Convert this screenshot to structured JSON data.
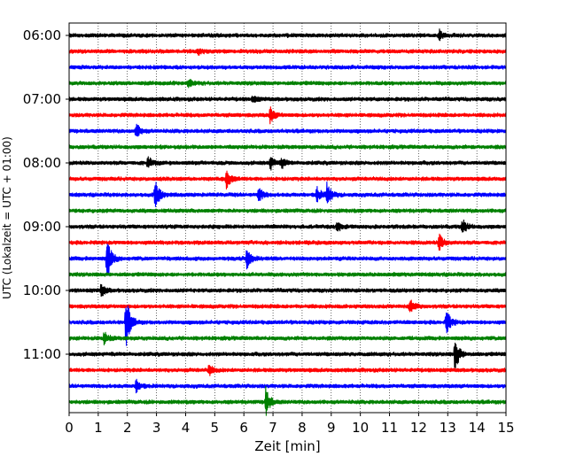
{
  "chart_data": {
    "type": "line",
    "title": "",
    "xlabel": "Zeit  [min]",
    "ylabel": "UTC (Lokalzeit = UTC + 01:00)",
    "xlim": [
      0,
      15
    ],
    "x_ticks": [
      0,
      1,
      2,
      3,
      4,
      5,
      6,
      7,
      8,
      9,
      10,
      11,
      12,
      13,
      14,
      15
    ],
    "y_tick_labels": [
      "06:00",
      "07:00",
      "08:00",
      "09:00",
      "10:00",
      "11:00"
    ],
    "y_tick_trace_index": [
      0,
      4,
      8,
      12,
      16,
      20
    ],
    "trace_interval_min": 15,
    "trace_colors": [
      "#000000",
      "#ff0000",
      "#0000ff",
      "#008000"
    ],
    "grid": "vertical dotted at each minute",
    "traces": [
      {
        "start": "06:00",
        "color": "#000000",
        "events": [
          {
            "t": 12.7,
            "amp": 0.35
          }
        ]
      },
      {
        "start": "06:15",
        "color": "#ff0000",
        "events": [
          {
            "t": 4.4,
            "amp": 0.2
          }
        ]
      },
      {
        "start": "06:30",
        "color": "#0000ff",
        "events": []
      },
      {
        "start": "06:45",
        "color": "#008000",
        "events": [
          {
            "t": 4.1,
            "amp": 0.3
          }
        ]
      },
      {
        "start": "07:00",
        "color": "#000000",
        "events": [
          {
            "t": 6.3,
            "amp": 0.2
          }
        ]
      },
      {
        "start": "07:15",
        "color": "#ff0000",
        "events": [
          {
            "t": 6.9,
            "amp": 0.5
          }
        ]
      },
      {
        "start": "07:30",
        "color": "#0000ff",
        "events": [
          {
            "t": 2.3,
            "amp": 0.5
          }
        ]
      },
      {
        "start": "07:45",
        "color": "#008000",
        "events": []
      },
      {
        "start": "08:00",
        "color": "#000000",
        "events": [
          {
            "t": 2.7,
            "amp": 0.4
          },
          {
            "t": 6.9,
            "amp": 0.45
          },
          {
            "t": 7.3,
            "amp": 0.3
          }
        ]
      },
      {
        "start": "08:15",
        "color": "#ff0000",
        "events": [
          {
            "t": 5.4,
            "amp": 0.6
          }
        ]
      },
      {
        "start": "08:30",
        "color": "#0000ff",
        "events": [
          {
            "t": 2.95,
            "amp": 1.0
          },
          {
            "t": 6.5,
            "amp": 0.5
          },
          {
            "t": 8.5,
            "amp": 0.5
          },
          {
            "t": 8.85,
            "amp": 0.8
          }
        ]
      },
      {
        "start": "08:45",
        "color": "#008000",
        "events": []
      },
      {
        "start": "09:00",
        "color": "#000000",
        "events": [
          {
            "t": 9.2,
            "amp": 0.3
          },
          {
            "t": 13.5,
            "amp": 0.5
          }
        ]
      },
      {
        "start": "09:15",
        "color": "#ff0000",
        "events": [
          {
            "t": 12.7,
            "amp": 0.55
          }
        ]
      },
      {
        "start": "09:30",
        "color": "#0000ff",
        "events": [
          {
            "t": 1.3,
            "amp": 1.5
          },
          {
            "t": 6.1,
            "amp": 0.7
          }
        ]
      },
      {
        "start": "09:45",
        "color": "#008000",
        "events": []
      },
      {
        "start": "10:00",
        "color": "#000000",
        "events": [
          {
            "t": 1.1,
            "amp": 0.4
          }
        ]
      },
      {
        "start": "10:15",
        "color": "#ff0000",
        "events": [
          {
            "t": 11.7,
            "amp": 0.5
          }
        ]
      },
      {
        "start": "10:30",
        "color": "#0000ff",
        "events": [
          {
            "t": 1.95,
            "amp": 1.7
          },
          {
            "t": 12.95,
            "amp": 0.8
          }
        ]
      },
      {
        "start": "10:45",
        "color": "#008000",
        "events": [
          {
            "t": 1.2,
            "amp": 0.4
          }
        ]
      },
      {
        "start": "11:00",
        "color": "#000000",
        "events": [
          {
            "t": 13.25,
            "amp": 1.1
          }
        ]
      },
      {
        "start": "11:15",
        "color": "#ff0000",
        "events": [
          {
            "t": 4.8,
            "amp": 0.35
          }
        ]
      },
      {
        "start": "11:30",
        "color": "#0000ff",
        "events": [
          {
            "t": 2.3,
            "amp": 0.4
          }
        ]
      },
      {
        "start": "11:45",
        "color": "#008000",
        "events": [
          {
            "t": 6.75,
            "amp": 0.9
          }
        ]
      }
    ]
  }
}
